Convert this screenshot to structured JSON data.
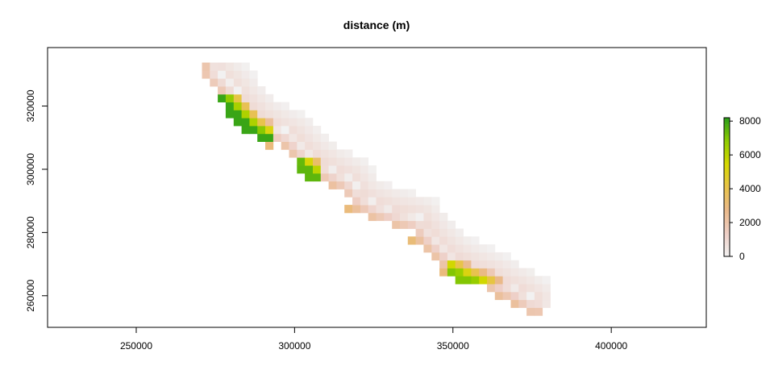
{
  "chart_data": {
    "type": "heatmap",
    "title": "distance (m)",
    "xlabel": "",
    "ylabel": "",
    "xlim": [
      222000,
      430000
    ],
    "ylim": [
      250000,
      338500
    ],
    "x_ticks": [
      250000,
      300000,
      350000,
      400000
    ],
    "y_ticks": [
      260000,
      280000,
      300000,
      320000
    ],
    "colorbar": {
      "min": 0,
      "max": 8200,
      "ticks": [
        0,
        2000,
        4000,
        6000,
        8000
      ],
      "palette": [
        "#f2f2f2",
        "#eecfc6",
        "#eab98a",
        "#e8c34a",
        "#d6d800",
        "#8fcc00",
        "#2a9e1a"
      ]
    },
    "grid": false,
    "legend": "right",
    "raster_band": {
      "description_free_points": true,
      "centerline": [
        [
          276000,
          331000
        ],
        [
          280000,
          327500
        ],
        [
          285000,
          321500
        ],
        [
          290000,
          316500
        ],
        [
          295000,
          313500
        ],
        [
          300000,
          311000
        ],
        [
          303000,
          307500
        ],
        [
          307000,
          304000
        ],
        [
          312000,
          300500
        ],
        [
          318000,
          297500
        ],
        [
          322000,
          292000
        ],
        [
          326000,
          289500
        ],
        [
          333000,
          287000
        ],
        [
          340000,
          285000
        ],
        [
          345000,
          278500
        ],
        [
          350000,
          273500
        ],
        [
          356000,
          270000
        ],
        [
          362000,
          267500
        ],
        [
          367000,
          264500
        ],
        [
          372000,
          262000
        ],
        [
          376000,
          259000
        ]
      ],
      "green_patches": [
        {
          "x": [
            276000,
            293000
          ],
          "y": [
            309000,
            324000
          ],
          "max_value": 8000
        },
        {
          "x": [
            302000,
            308000
          ],
          "y": [
            297500,
            303500
          ],
          "max_value": 7500
        },
        {
          "x": [
            349000,
            368000
          ],
          "y": [
            264000,
            272000
          ],
          "max_value": 7000
        }
      ]
    }
  }
}
